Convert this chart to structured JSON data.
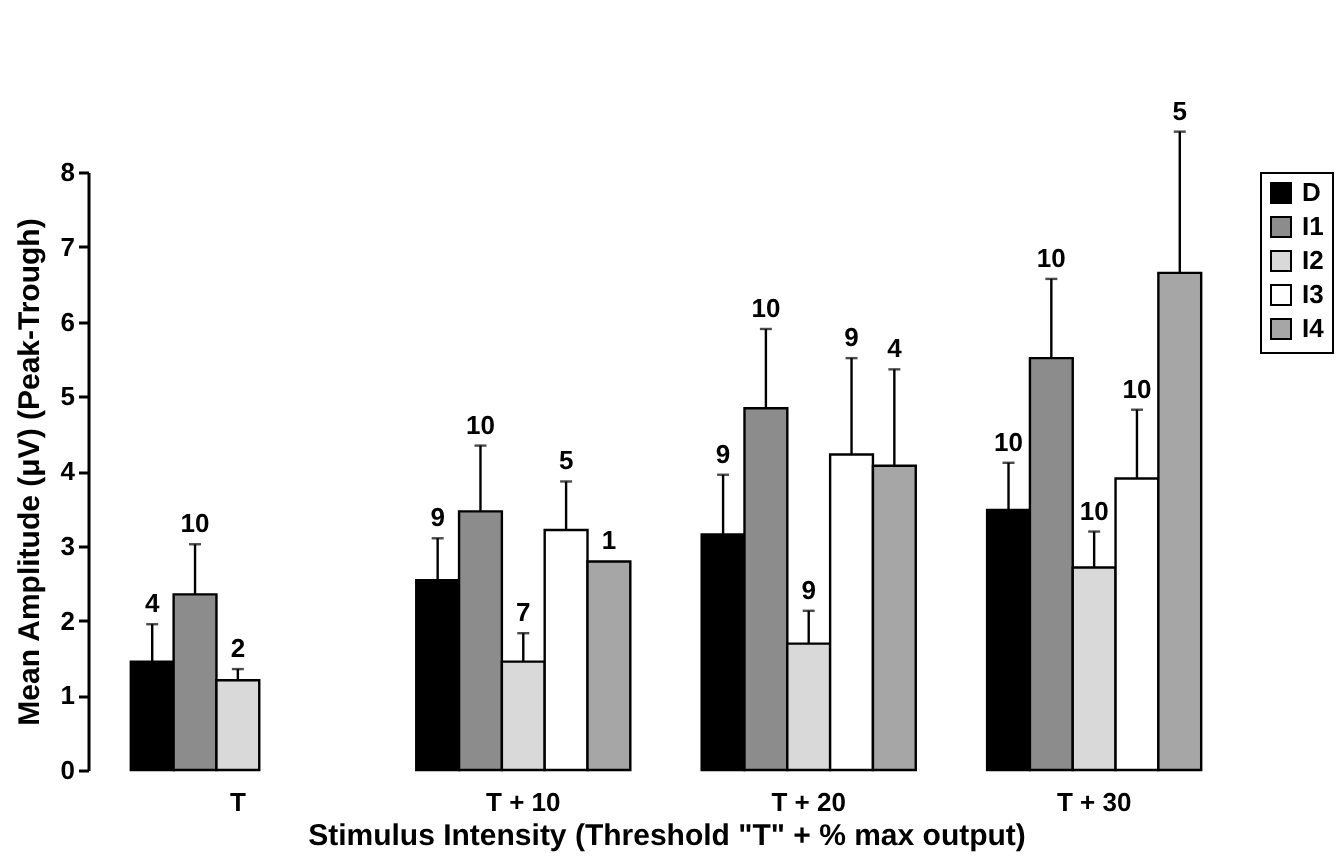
{
  "chart_data": {
    "type": "bar",
    "xlabel": "Stimulus Intensity (Threshold \"T\" + % max output)",
    "ylabel": "Mean Amplitude (μV) (Peak-Trough)",
    "categories": [
      "T",
      "T + 10",
      "T + 20",
      "T + 30"
    ],
    "ylim": [
      0,
      8
    ],
    "yticks": [
      0,
      1,
      2,
      3,
      4,
      5,
      6,
      7,
      8
    ],
    "grid": false,
    "legend": "right",
    "series": [
      {
        "name": "D",
        "color": "#000000",
        "values": [
          1.45,
          2.54,
          3.15,
          3.48
        ],
        "errors": [
          [
            1.45,
            1.95
          ],
          [
            2.54,
            3.1
          ],
          [
            3.15,
            3.95
          ],
          [
            3.48,
            4.11
          ]
        ]
      },
      {
        "name": "I1",
        "color": "#8c8c8c",
        "values": [
          2.35,
          3.46,
          4.84,
          5.51
        ],
        "errors": [
          [
            2.35,
            3.02
          ],
          [
            3.46,
            4.34
          ],
          [
            4.84,
            5.9
          ],
          [
            5.51,
            6.57
          ]
        ]
      },
      {
        "name": "I2",
        "color": "#d9d9d9",
        "values": [
          1.2,
          1.45,
          1.69,
          2.71
        ],
        "errors": [
          [
            1.2,
            1.35
          ],
          [
            1.45,
            1.83
          ],
          [
            1.69,
            2.13
          ],
          [
            2.71,
            3.19
          ]
        ]
      },
      {
        "name": "I3",
        "color": "#ffffff",
        "values": [
          null,
          3.21,
          4.22,
          3.9
        ],
        "errors": [
          null,
          [
            3.21,
            3.86
          ],
          [
            4.22,
            5.51
          ],
          [
            3.9,
            4.82
          ]
        ]
      },
      {
        "name": "I4",
        "color": "#a6a6a6",
        "values": [
          null,
          2.79,
          4.07,
          6.65
        ],
        "errors": [
          null,
          null,
          [
            4.07,
            5.36
          ],
          [
            6.65,
            8.54
          ]
        ]
      }
    ],
    "annotations": [
      "4",
      "10",
      "2",
      "9",
      "10",
      "7",
      "5",
      "1",
      "9",
      "10",
      "9",
      "9",
      "4",
      "10",
      "10",
      "10",
      "10",
      "5"
    ]
  }
}
